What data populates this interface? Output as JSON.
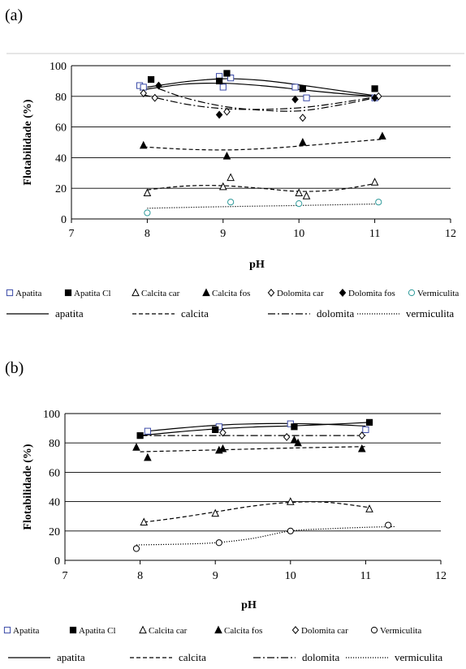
{
  "chart_data": [
    {
      "panel": "(a)",
      "type": "scatter",
      "xlabel": "pH",
      "ylabel": "Flotabilidade (%)",
      "xlim": [
        7,
        12
      ],
      "ylim": [
        0,
        100
      ],
      "x_ticks": [
        "7",
        "8",
        "9",
        "10",
        "11",
        "12"
      ],
      "y_ticks": [
        "0",
        "20",
        "40",
        "60",
        "80",
        "100"
      ],
      "grid": "horizontal",
      "legend_position": "bottom",
      "series": [
        {
          "name": "Apatita",
          "marker": "open-square",
          "color": "#3a4aa8",
          "points": [
            [
              7.9,
              87
            ],
            [
              7.95,
              86
            ],
            [
              8.95,
              93
            ],
            [
              9.0,
              86
            ],
            [
              9.1,
              92
            ],
            [
              9.95,
              86
            ],
            [
              10.1,
              79
            ],
            [
              11.0,
              79
            ]
          ]
        },
        {
          "name": "Apatita Cl",
          "marker": "filled-square",
          "color": "#000000",
          "points": [
            [
              8.05,
              91
            ],
            [
              8.95,
              90
            ],
            [
              9.05,
              95
            ],
            [
              10.05,
              85
            ],
            [
              11.0,
              85
            ]
          ]
        },
        {
          "name": "Calcita car",
          "marker": "open-triangle",
          "color": "#000000",
          "points": [
            [
              8.0,
              17
            ],
            [
              9.0,
              21
            ],
            [
              9.1,
              27
            ],
            [
              10.0,
              17
            ],
            [
              10.1,
              15
            ],
            [
              11.0,
              24
            ]
          ]
        },
        {
          "name": "Calcita fos",
          "marker": "filled-triangle",
          "color": "#000000",
          "points": [
            [
              7.95,
              48
            ],
            [
              9.05,
              41
            ],
            [
              10.05,
              50
            ],
            [
              11.1,
              54
            ]
          ]
        },
        {
          "name": "Dolomita car",
          "marker": "open-diamond",
          "color": "#000000",
          "points": [
            [
              7.95,
              82
            ],
            [
              8.1,
              79
            ],
            [
              9.05,
              70
            ],
            [
              10.05,
              66
            ],
            [
              11.05,
              80
            ]
          ]
        },
        {
          "name": "Dolomita fos",
          "marker": "filled-diamond",
          "color": "#000000",
          "points": [
            [
              8.15,
              87
            ],
            [
              8.95,
              68
            ],
            [
              9.95,
              78
            ],
            [
              11.0,
              79
            ]
          ]
        },
        {
          "name": "Vermiculita",
          "marker": "open-circle",
          "color": "#2e9a9a",
          "points": [
            [
              8.0,
              4
            ],
            [
              9.1,
              11
            ],
            [
              10.0,
              10
            ],
            [
              11.05,
              11
            ]
          ]
        }
      ],
      "trendlines": [
        {
          "name": "apatita",
          "style": "solid",
          "points": [
            [
              7.9,
              84
            ],
            [
              8.5,
              88
            ],
            [
              9.0,
              88.5
            ],
            [
              9.5,
              87
            ],
            [
              10.0,
              84.5
            ],
            [
              10.5,
              82
            ],
            [
              11.0,
              80
            ]
          ]
        },
        {
          "name": "apatita",
          "style": "solid",
          "points": [
            [
              8.0,
              86
            ],
            [
              8.5,
              89.5
            ],
            [
              9.0,
              91.5
            ],
            [
              9.5,
              90.5
            ],
            [
              10.0,
              87.5
            ],
            [
              10.5,
              84
            ],
            [
              11.0,
              80.5
            ]
          ]
        },
        {
          "name": "calcita",
          "style": "dashed",
          "points": [
            [
              7.95,
              47
            ],
            [
              8.5,
              45.5
            ],
            [
              9.0,
              45
            ],
            [
              9.5,
              45.8
            ],
            [
              10.0,
              47.5
            ],
            [
              10.5,
              49.5
            ],
            [
              11.1,
              52
            ]
          ]
        },
        {
          "name": "calcita",
          "style": "dashed",
          "points": [
            [
              8.0,
              19
            ],
            [
              8.5,
              21.5
            ],
            [
              9.0,
              21.7
            ],
            [
              9.5,
              20
            ],
            [
              10.0,
              18
            ],
            [
              10.5,
              19
            ],
            [
              11.0,
              23
            ]
          ]
        },
        {
          "name": "dolomita",
          "style": "dashdot",
          "points": [
            [
              7.95,
              81
            ],
            [
              8.5,
              75
            ],
            [
              9.0,
              72
            ],
            [
              9.5,
              71.5
            ],
            [
              10.0,
              72.5
            ],
            [
              10.5,
              75.5
            ],
            [
              11.05,
              80
            ]
          ]
        },
        {
          "name": "dolomita",
          "style": "dashdot",
          "points": [
            [
              8.15,
              85
            ],
            [
              8.5,
              79
            ],
            [
              9.0,
              73.5
            ],
            [
              9.5,
              71
            ],
            [
              10.0,
              70.5
            ],
            [
              10.5,
              74
            ],
            [
              11.0,
              79
            ]
          ]
        },
        {
          "name": "vermiculita",
          "style": "dotted",
          "points": [
            [
              8.0,
              7
            ],
            [
              9.0,
              8
            ],
            [
              10.0,
              8.8
            ],
            [
              11.05,
              9.8
            ]
          ]
        }
      ],
      "line_legend": [
        {
          "name": "apatita",
          "style": "solid"
        },
        {
          "name": "calcita",
          "style": "dashed"
        },
        {
          "name": "dolomita",
          "style": "dashdot"
        },
        {
          "name": "vermiculita",
          "style": "dotted"
        }
      ]
    },
    {
      "panel": "(b)",
      "type": "scatter",
      "xlabel": "pH",
      "ylabel": "Flotabilidade (%)",
      "xlim": [
        7,
        12
      ],
      "ylim": [
        0,
        100
      ],
      "x_ticks": [
        "7",
        "8",
        "9",
        "10",
        "11",
        "12"
      ],
      "y_ticks": [
        "0",
        "20",
        "40",
        "60",
        "80",
        "100"
      ],
      "grid": "horizontal",
      "legend_position": "bottom",
      "series": [
        {
          "name": "Apatita",
          "marker": "open-square",
          "color": "#3a4aa8",
          "points": [
            [
              8.1,
              88
            ],
            [
              9.05,
              91
            ],
            [
              10.0,
              93
            ],
            [
              11.0,
              89
            ]
          ]
        },
        {
          "name": "Apatita Cl",
          "marker": "filled-square",
          "color": "#000000",
          "points": [
            [
              8.0,
              85
            ],
            [
              9.0,
              89
            ],
            [
              10.05,
              91
            ],
            [
              11.05,
              94
            ]
          ]
        },
        {
          "name": "Calcita car",
          "marker": "open-triangle",
          "color": "#000000",
          "points": [
            [
              8.05,
              26
            ],
            [
              9.0,
              32
            ],
            [
              10.0,
              40
            ],
            [
              11.05,
              35
            ]
          ]
        },
        {
          "name": "Calcita fos",
          "marker": "filled-triangle",
          "color": "#000000",
          "points": [
            [
              7.95,
              77
            ],
            [
              8.1,
              70
            ],
            [
              9.05,
              75
            ],
            [
              9.1,
              76
            ],
            [
              10.05,
              82
            ],
            [
              10.1,
              80
            ],
            [
              10.95,
              76
            ]
          ]
        },
        {
          "name": "Dolomita car",
          "marker": "open-diamond",
          "color": "#000000",
          "points": [
            [
              9.1,
              87
            ],
            [
              9.95,
              84
            ],
            [
              10.95,
              85
            ]
          ]
        },
        {
          "name": "Vermiculita",
          "marker": "open-circle",
          "color": "#000000",
          "points": [
            [
              7.95,
              8
            ],
            [
              9.05,
              12
            ],
            [
              10.0,
              20
            ],
            [
              11.3,
              24
            ]
          ]
        }
      ],
      "trendlines": [
        {
          "name": "apatita",
          "style": "solid",
          "points": [
            [
              8.1,
              88
            ],
            [
              8.5,
              90
            ],
            [
              9.0,
              92
            ],
            [
              9.5,
              93
            ],
            [
              10.0,
              93.2
            ],
            [
              10.5,
              92.6
            ],
            [
              11.0,
              91.5
            ]
          ]
        },
        {
          "name": "apatita",
          "style": "solid",
          "points": [
            [
              8.0,
              85
            ],
            [
              8.5,
              87.5
            ],
            [
              9.0,
              89.5
            ],
            [
              9.5,
              90.8
            ],
            [
              10.0,
              91.6
            ],
            [
              10.5,
              92.6
            ],
            [
              11.05,
              94
            ]
          ]
        },
        {
          "name": "calcita",
          "style": "dashed",
          "points": [
            [
              8.0,
              74
            ],
            [
              9.0,
              75.2
            ],
            [
              10.0,
              76.5
            ],
            [
              11.0,
              77.5
            ]
          ]
        },
        {
          "name": "calcita",
          "style": "dashed",
          "points": [
            [
              8.05,
              26
            ],
            [
              8.5,
              29
            ],
            [
              9.0,
              33
            ],
            [
              9.5,
              37
            ],
            [
              10.0,
              39.5
            ],
            [
              10.5,
              39.5
            ],
            [
              11.05,
              36
            ]
          ]
        },
        {
          "name": "dolomita",
          "style": "dashdot",
          "points": [
            [
              8.0,
              85
            ],
            [
              11.0,
              85
            ]
          ]
        },
        {
          "name": "vermiculita",
          "style": "dotted",
          "points": [
            [
              7.95,
              10.5
            ],
            [
              8.5,
              11
            ],
            [
              9.0,
              12
            ],
            [
              9.5,
              15
            ],
            [
              10.0,
              20
            ],
            [
              10.5,
              21.5
            ],
            [
              11.0,
              22.5
            ],
            [
              11.4,
              23
            ]
          ]
        }
      ],
      "line_legend": [
        {
          "name": "apatita",
          "style": "solid"
        },
        {
          "name": "calcita",
          "style": "dashed"
        },
        {
          "name": "dolomita",
          "style": "dashdot"
        },
        {
          "name": "vermiculita",
          "style": "dotted"
        }
      ]
    }
  ]
}
